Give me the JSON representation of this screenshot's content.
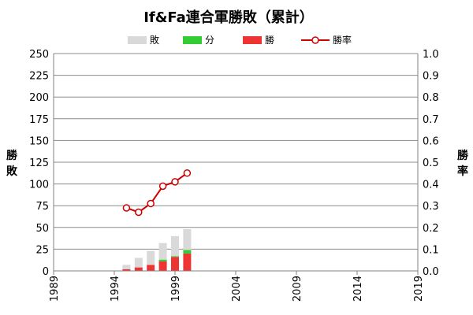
{
  "chart_data": {
    "type": "bar",
    "title": "If&Fa連合軍勝敗（累計）",
    "stacked": true,
    "x": [
      1995,
      1996,
      1997,
      1998,
      1999,
      2000
    ],
    "x_ticks": [
      "1989",
      "1994",
      "1999",
      "2004",
      "2009",
      "2014",
      "2019"
    ],
    "xlim": [
      1989,
      2019
    ],
    "y_left": {
      "label": "勝敗",
      "ylim": [
        0,
        250
      ],
      "ticks": [
        "0",
        "25",
        "50",
        "75",
        "100",
        "125",
        "150",
        "175",
        "200",
        "225",
        "250"
      ]
    },
    "y_right": {
      "label": "勝率",
      "ylim": [
        0,
        1.0
      ],
      "ticks": [
        "0.0",
        "0.1",
        "0.2",
        "0.3",
        "0.4",
        "0.5",
        "0.6",
        "0.7",
        "0.8",
        "0.9",
        "1.0"
      ]
    },
    "series": [
      {
        "name": "勝",
        "axis": "left",
        "values": [
          2,
          4,
          7,
          11,
          16,
          20
        ]
      },
      {
        "name": "分",
        "axis": "left",
        "values": [
          0,
          0,
          0,
          2,
          1,
          4
        ]
      },
      {
        "name": "敗",
        "axis": "left",
        "values": [
          5,
          11,
          16,
          19,
          23,
          24
        ]
      },
      {
        "name": "勝率",
        "type": "line",
        "axis": "right",
        "values": [
          0.29,
          0.27,
          0.31,
          0.39,
          0.41,
          0.45
        ]
      }
    ],
    "colors": {
      "敗": "#d9d9d9",
      "分": "#33cc33",
      "勝": "#ee3333",
      "勝率": "#cc0000"
    },
    "legend_order": [
      "敗",
      "分",
      "勝",
      "勝率"
    ],
    "legend_position": "top",
    "grid": true
  }
}
